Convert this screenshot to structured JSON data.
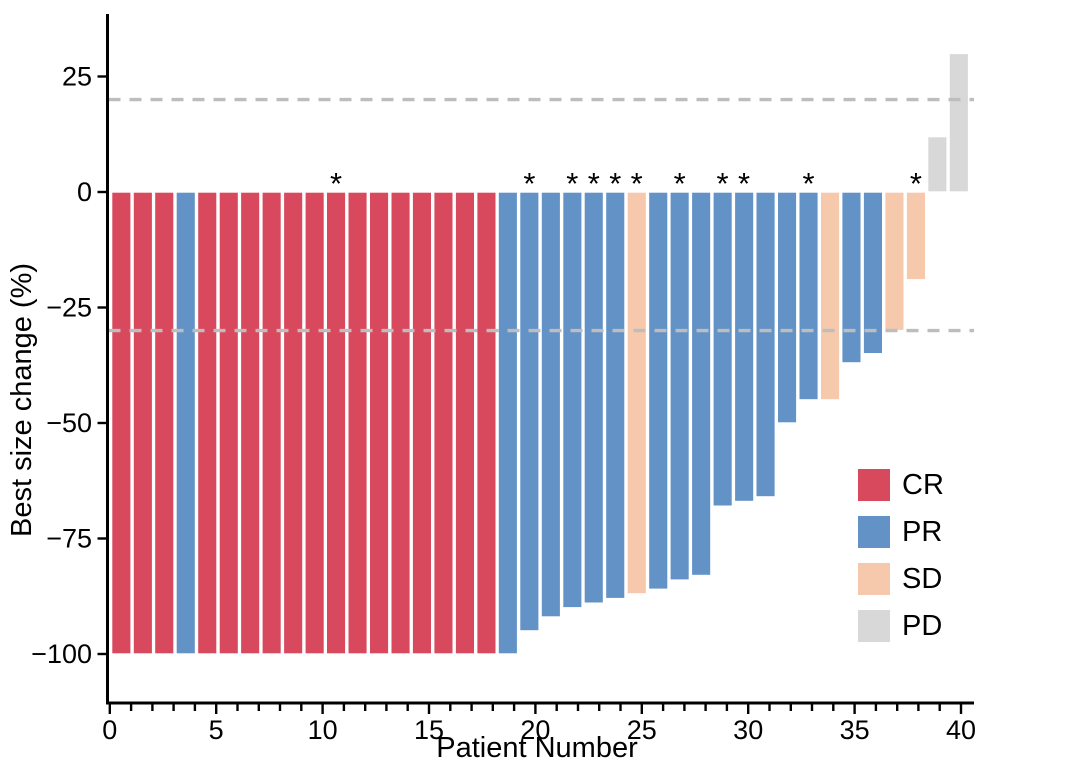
{
  "chart_data": {
    "type": "bar",
    "subtype": "waterfall",
    "title": "",
    "xlabel": "Patient Number",
    "ylabel": "Best size change (%)",
    "annotation_symbol": "*",
    "x_axis": {
      "min": 0,
      "max": 40,
      "major_ticks": [
        0,
        5,
        10,
        15,
        20,
        25,
        30,
        35,
        40
      ],
      "tick_labels": [
        "0",
        "5",
        "10",
        "15",
        "20",
        "25",
        "30",
        "35",
        "40"
      ],
      "minor_tick_every": 1
    },
    "y_axis": {
      "min": -110,
      "max": 38,
      "ticks": [
        25,
        0,
        -25,
        -50,
        -75,
        -100
      ],
      "tick_labels": [
        "25",
        "0",
        "−25",
        "−50",
        "−75",
        "−100"
      ]
    },
    "reference_lines": [
      {
        "y": 20,
        "style": "dashed",
        "color": "#bdbdbd"
      },
      {
        "y": -30,
        "style": "dashed",
        "color": "#bdbdbd"
      }
    ],
    "legend": {
      "position": "lower-right",
      "entries": [
        {
          "label": "CR",
          "color": "#d8495e"
        },
        {
          "label": "PR",
          "color": "#6292c6"
        },
        {
          "label": "SD",
          "color": "#f6c8ac"
        },
        {
          "label": "PD",
          "color": "#d8d8d8"
        }
      ]
    },
    "patients": [
      {
        "n": 1,
        "response": "CR",
        "value": -100,
        "mark": false
      },
      {
        "n": 2,
        "response": "CR",
        "value": -100,
        "mark": false
      },
      {
        "n": 3,
        "response": "CR",
        "value": -100,
        "mark": false
      },
      {
        "n": 4,
        "response": "PR",
        "value": -100,
        "mark": false
      },
      {
        "n": 5,
        "response": "CR",
        "value": -100,
        "mark": false
      },
      {
        "n": 6,
        "response": "CR",
        "value": -100,
        "mark": false
      },
      {
        "n": 7,
        "response": "CR",
        "value": -100,
        "mark": false
      },
      {
        "n": 8,
        "response": "CR",
        "value": -100,
        "mark": false
      },
      {
        "n": 9,
        "response": "CR",
        "value": -100,
        "mark": false
      },
      {
        "n": 10,
        "response": "CR",
        "value": -100,
        "mark": false
      },
      {
        "n": 11,
        "response": "CR",
        "value": -100,
        "mark": true
      },
      {
        "n": 12,
        "response": "CR",
        "value": -100,
        "mark": false
      },
      {
        "n": 13,
        "response": "CR",
        "value": -100,
        "mark": false
      },
      {
        "n": 14,
        "response": "CR",
        "value": -100,
        "mark": false
      },
      {
        "n": 15,
        "response": "CR",
        "value": -100,
        "mark": false
      },
      {
        "n": 16,
        "response": "CR",
        "value": -100,
        "mark": false
      },
      {
        "n": 17,
        "response": "CR",
        "value": -100,
        "mark": false
      },
      {
        "n": 18,
        "response": "CR",
        "value": -100,
        "mark": false
      },
      {
        "n": 19,
        "response": "PR",
        "value": -100,
        "mark": false
      },
      {
        "n": 20,
        "response": "PR",
        "value": -95,
        "mark": true
      },
      {
        "n": 21,
        "response": "PR",
        "value": -92,
        "mark": false
      },
      {
        "n": 22,
        "response": "PR",
        "value": -90,
        "mark": true
      },
      {
        "n": 23,
        "response": "PR",
        "value": -89,
        "mark": true
      },
      {
        "n": 24,
        "response": "PR",
        "value": -88,
        "mark": true
      },
      {
        "n": 25,
        "response": "SD",
        "value": -87,
        "mark": true
      },
      {
        "n": 26,
        "response": "PR",
        "value": -86,
        "mark": false
      },
      {
        "n": 27,
        "response": "PR",
        "value": -84,
        "mark": true
      },
      {
        "n": 28,
        "response": "PR",
        "value": -83,
        "mark": false
      },
      {
        "n": 29,
        "response": "PR",
        "value": -68,
        "mark": true
      },
      {
        "n": 30,
        "response": "PR",
        "value": -67,
        "mark": true
      },
      {
        "n": 31,
        "response": "PR",
        "value": -66,
        "mark": false
      },
      {
        "n": 32,
        "response": "PR",
        "value": -50,
        "mark": false
      },
      {
        "n": 33,
        "response": "PR",
        "value": -45,
        "mark": true
      },
      {
        "n": 34,
        "response": "SD",
        "value": -45,
        "mark": false
      },
      {
        "n": 35,
        "response": "PR",
        "value": -37,
        "mark": false
      },
      {
        "n": 36,
        "response": "PR",
        "value": -35,
        "mark": false
      },
      {
        "n": 37,
        "response": "SD",
        "value": -30,
        "mark": false
      },
      {
        "n": 38,
        "response": "SD",
        "value": -19,
        "mark": true
      },
      {
        "n": 39,
        "response": "PD",
        "value": 12,
        "mark": false
      },
      {
        "n": 40,
        "response": "PD",
        "value": 30,
        "mark": false
      }
    ]
  }
}
